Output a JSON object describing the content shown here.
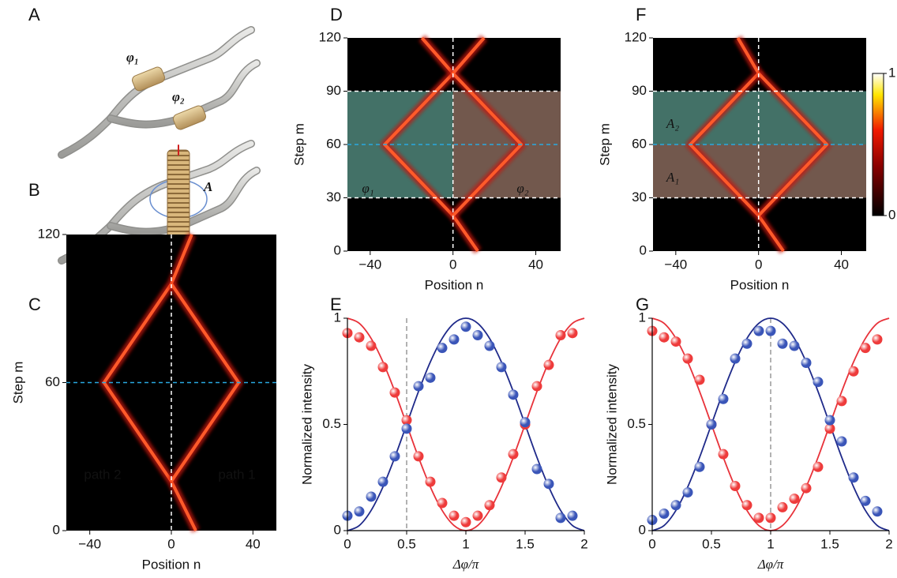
{
  "illustrations": [
    {
      "label": "A",
      "texts": [
        "φ₁",
        "φ₂"
      ]
    },
    {
      "label": "B",
      "texts": [
        "A"
      ]
    }
  ],
  "chart_data": [
    {
      "type": "heatmap",
      "label": "C",
      "xlabel": "Position n",
      "ylabel": "Step m",
      "xlim": [
        -51.5,
        51.5
      ],
      "ylim": [
        0,
        120
      ],
      "xticks": [
        {
          "value": -40,
          "label": "−40"
        },
        0,
        40
      ],
      "yticks": [
        0,
        60,
        120
      ],
      "beams": [
        {
          "x": [
            12,
            0,
            -33,
            0,
            10
          ],
          "y": [
            0,
            20,
            60,
            100,
            120
          ]
        },
        {
          "x": [
            0,
            33,
            0
          ],
          "y": [
            20,
            60,
            100
          ]
        }
      ],
      "vlines": [
        {
          "value": 0,
          "color": "#ffffff"
        }
      ],
      "hlines": [
        {
          "value": 60,
          "color": "#29a9e0"
        }
      ],
      "texts": [
        "path 2",
        "path 1"
      ]
    },
    {
      "type": "heatmap",
      "label": "D",
      "xlabel": "Position n",
      "ylabel": "Step m",
      "xlim": [
        -51,
        52
      ],
      "ylim": [
        0,
        120
      ],
      "xticks": [
        {
          "value": -40,
          "label": "−40"
        },
        0,
        40
      ],
      "yticks": [
        0,
        30,
        60,
        90,
        120
      ],
      "regions": [
        {
          "x": [
            -51,
            0
          ],
          "y": [
            30,
            90
          ],
          "color": "#4f8579"
        },
        {
          "x": [
            0,
            52
          ],
          "y": [
            30,
            90
          ],
          "color": "#86675b"
        }
      ],
      "beams": [
        {
          "x": [
            12,
            0,
            -33,
            0,
            -15
          ],
          "y": [
            0,
            20,
            60,
            100,
            120
          ]
        },
        {
          "x": [
            0,
            33,
            0,
            15
          ],
          "y": [
            20,
            60,
            100,
            120
          ]
        }
      ],
      "vlines": [
        {
          "value": 0,
          "color": "#ffffff"
        }
      ],
      "hlines": [
        {
          "value": 30,
          "color": "#ffffff"
        },
        {
          "value": 60,
          "color": "#29a9e0"
        },
        {
          "value": 90,
          "color": "#ffffff"
        }
      ],
      "texts": [
        "φ₁",
        "φ₂"
      ]
    },
    {
      "type": "heatmap",
      "label": "F",
      "xlabel": "Position n",
      "ylabel": "Step m",
      "xlim": [
        -51,
        52
      ],
      "ylim": [
        0,
        120
      ],
      "xticks": [
        {
          "value": -40,
          "label": "−40"
        },
        0,
        40
      ],
      "yticks": [
        0,
        30,
        60,
        90,
        120
      ],
      "regions": [
        {
          "x": [
            -51,
            52
          ],
          "y": [
            60,
            90
          ],
          "color": "#4f8579"
        },
        {
          "x": [
            -51,
            52
          ],
          "y": [
            30,
            60
          ],
          "color": "#86675b"
        }
      ],
      "beams": [
        {
          "x": [
            12,
            0,
            -33,
            0,
            -10
          ],
          "y": [
            0,
            20,
            60,
            100,
            120
          ]
        },
        {
          "x": [
            0,
            33,
            0
          ],
          "y": [
            20,
            60,
            100
          ]
        }
      ],
      "vlines": [
        {
          "value": 0,
          "color": "#ffffff"
        }
      ],
      "hlines": [
        {
          "value": 30,
          "color": "#ffffff"
        },
        {
          "value": 60,
          "color": "#29a9e0"
        },
        {
          "value": 90,
          "color": "#ffffff"
        }
      ],
      "texts": [
        "A₂",
        "A₁"
      ],
      "colorbar": {
        "lim": [
          0,
          1
        ],
        "ticks": [
          0,
          1
        ]
      }
    },
    {
      "type": "line",
      "label": "E",
      "xlabel": "Δφ/π",
      "ylabel": "Normalized intensity",
      "xlim": [
        0,
        2
      ],
      "ylim": [
        0,
        1
      ],
      "xticks": [
        0,
        0.5,
        1,
        1.5,
        2
      ],
      "yticks": [
        0,
        0.5,
        1
      ],
      "vlines": [
        {
          "value": 0.5,
          "color": "#888888"
        }
      ],
      "series": [
        {
          "style": "line",
          "color": "#e8323a",
          "x": [
            0,
            0.1,
            0.2,
            0.3,
            0.4,
            0.5,
            0.6,
            0.7,
            0.8,
            0.9,
            1,
            1.1,
            1.2,
            1.3,
            1.4,
            1.5,
            1.6,
            1.7,
            1.8,
            1.9,
            2
          ],
          "values": [
            1,
            0.976,
            0.905,
            0.794,
            0.655,
            0.5,
            0.345,
            0.206,
            0.095,
            0.024,
            0,
            0.024,
            0.095,
            0.206,
            0.345,
            0.5,
            0.655,
            0.794,
            0.905,
            0.976,
            1
          ]
        },
        {
          "style": "line",
          "color": "#1f2a8a",
          "x": [
            0,
            0.1,
            0.2,
            0.3,
            0.4,
            0.5,
            0.6,
            0.7,
            0.8,
            0.9,
            1,
            1.1,
            1.2,
            1.3,
            1.4,
            1.5,
            1.6,
            1.7,
            1.8,
            1.9,
            2
          ],
          "values": [
            0,
            0.024,
            0.095,
            0.206,
            0.345,
            0.5,
            0.655,
            0.794,
            0.905,
            0.976,
            1,
            0.976,
            0.905,
            0.794,
            0.655,
            0.5,
            0.345,
            0.206,
            0.095,
            0.024,
            0
          ]
        },
        {
          "style": "markers",
          "color": "#ee3b3b",
          "x": [
            0,
            0.1,
            0.2,
            0.3,
            0.4,
            0.5,
            0.6,
            0.7,
            0.8,
            0.9,
            1,
            1.1,
            1.2,
            1.3,
            1.4,
            1.5,
            1.6,
            1.7,
            1.8,
            1.9
          ],
          "values": [
            0.93,
            0.91,
            0.87,
            0.77,
            0.65,
            0.52,
            0.35,
            0.23,
            0.13,
            0.07,
            0.04,
            0.07,
            0.12,
            0.25,
            0.36,
            0.5,
            0.68,
            0.78,
            0.92,
            0.93
          ]
        },
        {
          "style": "markers",
          "color": "#3a55b8",
          "x": [
            0,
            0.1,
            0.2,
            0.3,
            0.4,
            0.5,
            0.6,
            0.7,
            0.8,
            0.9,
            1,
            1.1,
            1.2,
            1.3,
            1.4,
            1.5,
            1.6,
            1.7,
            1.8,
            1.9
          ],
          "values": [
            0.07,
            0.09,
            0.16,
            0.23,
            0.35,
            0.48,
            0.68,
            0.72,
            0.86,
            0.9,
            0.96,
            0.92,
            0.87,
            0.77,
            0.64,
            0.51,
            0.29,
            0.22,
            0.06,
            0.07
          ]
        }
      ]
    },
    {
      "type": "line",
      "label": "G",
      "xlabel": "Δφ/π",
      "ylabel": "Normalized intensity",
      "xlim": [
        0,
        2
      ],
      "ylim": [
        0,
        1
      ],
      "xticks": [
        0,
        0.5,
        1,
        1.5,
        2
      ],
      "yticks": [
        0,
        0.5,
        1
      ],
      "vlines": [
        {
          "value": 1,
          "color": "#888888"
        }
      ],
      "series": [
        {
          "style": "line",
          "color": "#e8323a",
          "x": [
            0,
            0.1,
            0.2,
            0.3,
            0.4,
            0.5,
            0.6,
            0.7,
            0.8,
            0.9,
            1,
            1.1,
            1.2,
            1.3,
            1.4,
            1.5,
            1.6,
            1.7,
            1.8,
            1.9,
            2
          ],
          "values": [
            1,
            0.976,
            0.905,
            0.794,
            0.655,
            0.5,
            0.345,
            0.206,
            0.095,
            0.024,
            0,
            0.024,
            0.095,
            0.206,
            0.345,
            0.5,
            0.655,
            0.794,
            0.905,
            0.976,
            1
          ]
        },
        {
          "style": "line",
          "color": "#1f2a8a",
          "x": [
            0,
            0.1,
            0.2,
            0.3,
            0.4,
            0.5,
            0.6,
            0.7,
            0.8,
            0.9,
            1,
            1.1,
            1.2,
            1.3,
            1.4,
            1.5,
            1.6,
            1.7,
            1.8,
            1.9,
            2
          ],
          "values": [
            0,
            0.024,
            0.095,
            0.206,
            0.345,
            0.5,
            0.655,
            0.794,
            0.905,
            0.976,
            1,
            0.976,
            0.905,
            0.794,
            0.655,
            0.5,
            0.345,
            0.206,
            0.095,
            0.024,
            0
          ]
        },
        {
          "style": "markers",
          "color": "#ee3b3b",
          "x": [
            0,
            0.1,
            0.2,
            0.3,
            0.4,
            0.5,
            0.6,
            0.7,
            0.8,
            0.9,
            1,
            1.1,
            1.2,
            1.3,
            1.4,
            1.5,
            1.6,
            1.7,
            1.8,
            1.9
          ],
          "values": [
            0.94,
            0.91,
            0.89,
            0.81,
            0.71,
            0.5,
            0.36,
            0.21,
            0.12,
            0.06,
            0.06,
            0.11,
            0.15,
            0.2,
            0.3,
            0.48,
            0.61,
            0.75,
            0.86,
            0.9
          ]
        },
        {
          "style": "markers",
          "color": "#3a55b8",
          "x": [
            0,
            0.1,
            0.2,
            0.3,
            0.4,
            0.5,
            0.6,
            0.7,
            0.8,
            0.9,
            1,
            1.1,
            1.2,
            1.3,
            1.4,
            1.5,
            1.6,
            1.7,
            1.8,
            1.9
          ],
          "values": [
            0.05,
            0.08,
            0.12,
            0.18,
            0.3,
            0.5,
            0.62,
            0.81,
            0.88,
            0.94,
            0.94,
            0.88,
            0.87,
            0.79,
            0.7,
            0.52,
            0.42,
            0.25,
            0.14,
            0.09
          ]
        }
      ]
    }
  ]
}
